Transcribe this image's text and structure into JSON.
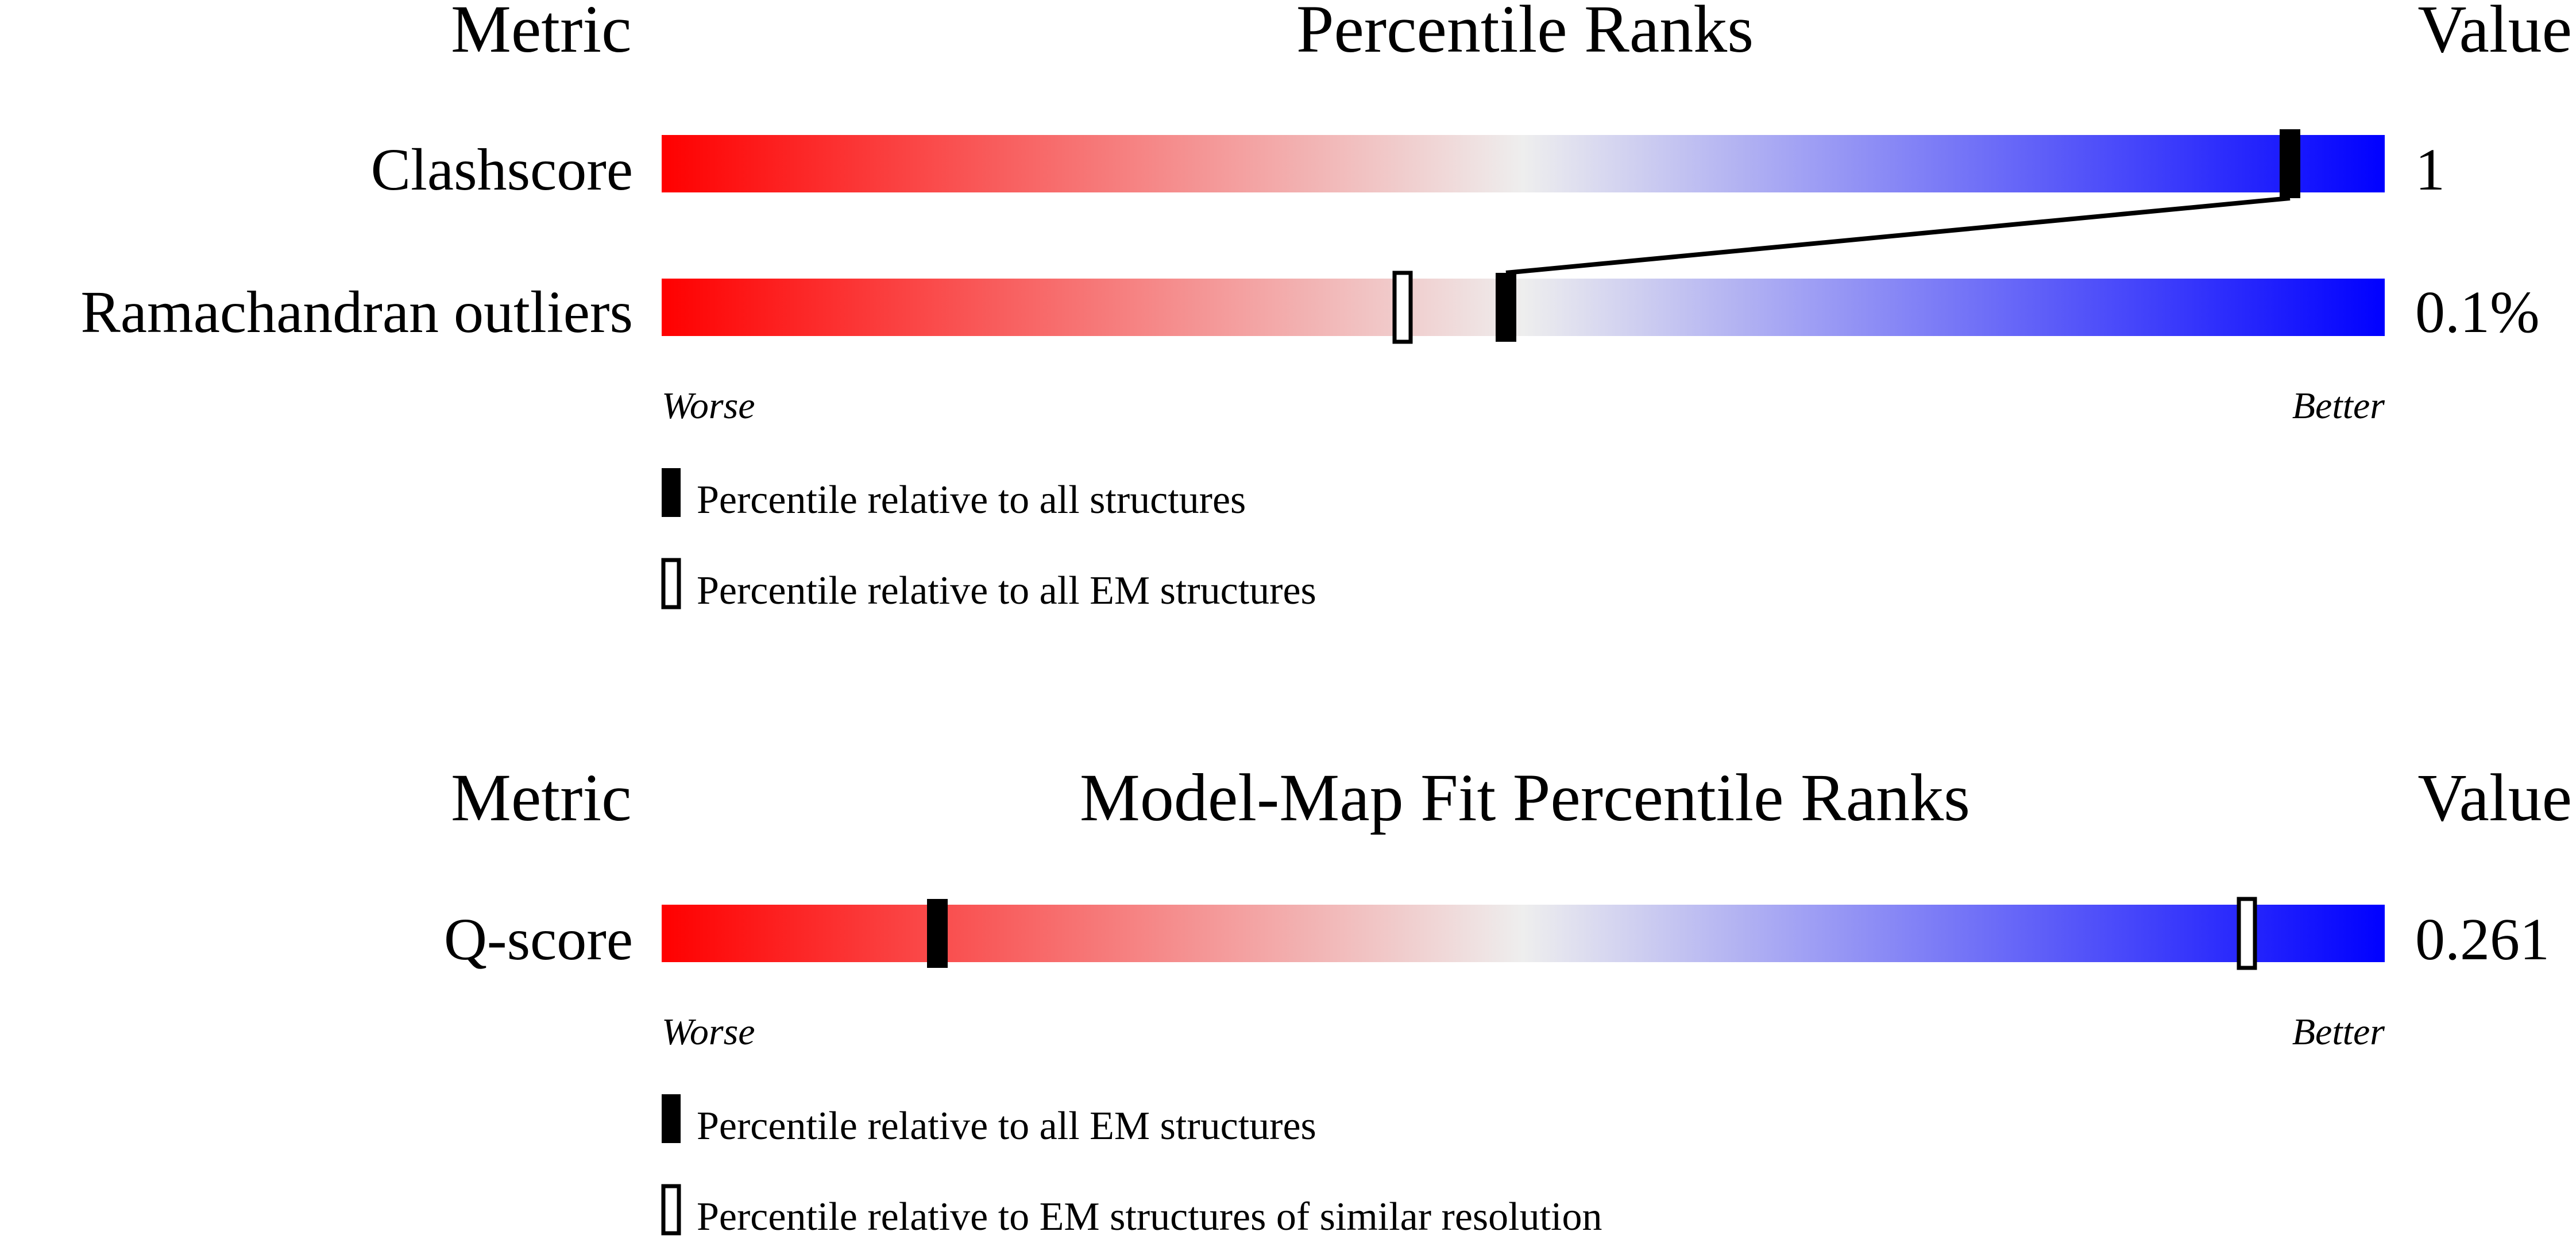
{
  "chart_data": [
    {
      "type": "percentile-ranks",
      "header": {
        "metric": "Metric",
        "title": "Percentile Ranks",
        "value": "Value"
      },
      "scale": {
        "worse": "Worse",
        "better": "Better"
      },
      "colors": {
        "worse": "#ff0000",
        "neutral": "#eeeeee",
        "better": "#0000ff",
        "marker": "#000000"
      },
      "rows": [
        {
          "metric": "Clashscore",
          "value": "1",
          "percentile_all": 94.5,
          "percentile_em": null
        },
        {
          "metric": "Ramachandran outliers",
          "value": "0.1%",
          "percentile_all": 49.0,
          "percentile_em": 43.0
        }
      ],
      "legend": [
        {
          "style": "filled",
          "label": "Percentile relative to all structures"
        },
        {
          "style": "hollow",
          "label": "Percentile relative to all EM structures"
        }
      ]
    },
    {
      "type": "percentile-ranks",
      "header": {
        "metric": "Metric",
        "title": "Model-Map Fit Percentile Ranks",
        "value": "Value"
      },
      "scale": {
        "worse": "Worse",
        "better": "Better"
      },
      "colors": {
        "worse": "#ff0000",
        "neutral": "#eeeeee",
        "better": "#0000ff",
        "marker": "#000000"
      },
      "rows": [
        {
          "metric": "Q-score",
          "value": "0.261",
          "percentile_all": 16.0,
          "percentile_em": 92.0
        }
      ],
      "legend": [
        {
          "style": "filled",
          "label": "Percentile relative to all EM structures"
        },
        {
          "style": "hollow",
          "label": "Percentile relative to EM structures of similar resolution"
        }
      ]
    }
  ]
}
